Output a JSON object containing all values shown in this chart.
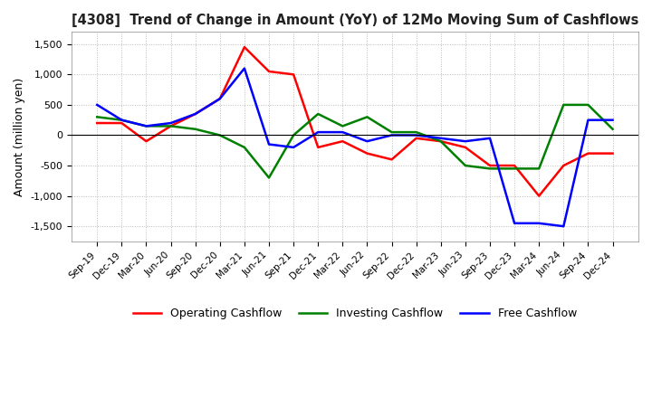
{
  "title": "[4308]  Trend of Change in Amount (YoY) of 12Mo Moving Sum of Cashflows",
  "ylabel": "Amount (million yen)",
  "ylim": [
    -1750,
    1700
  ],
  "yticks": [
    -1500,
    -1000,
    -500,
    0,
    500,
    1000,
    1500
  ],
  "x_labels": [
    "Sep-19",
    "Dec-19",
    "Mar-20",
    "Jun-20",
    "Sep-20",
    "Dec-20",
    "Mar-21",
    "Jun-21",
    "Sep-21",
    "Dec-21",
    "Mar-22",
    "Jun-22",
    "Sep-22",
    "Dec-22",
    "Mar-23",
    "Jun-23",
    "Sep-23",
    "Dec-23",
    "Mar-24",
    "Jun-24",
    "Sep-24",
    "Dec-24"
  ],
  "operating": [
    200,
    200,
    -100,
    150,
    350,
    600,
    1450,
    1050,
    1000,
    -200,
    -100,
    -300,
    -400,
    -50,
    -100,
    -200,
    -500,
    -500,
    -1000,
    -500,
    -300,
    -300
  ],
  "investing": [
    300,
    250,
    150,
    150,
    100,
    0,
    -200,
    -700,
    0,
    350,
    150,
    300,
    50,
    50,
    -100,
    -500,
    -550,
    -550,
    -550,
    500,
    500,
    100
  ],
  "free": [
    500,
    250,
    150,
    200,
    350,
    600,
    1100,
    -150,
    -200,
    50,
    50,
    -100,
    0,
    0,
    -50,
    -100,
    -50,
    -1450,
    -1450,
    -1500,
    250,
    250
  ],
  "colors": {
    "operating": "#ff0000",
    "investing": "#008000",
    "free": "#0000ff"
  },
  "legend_labels": [
    "Operating Cashflow",
    "Investing Cashflow",
    "Free Cashflow"
  ],
  "background_color": "#ffffff",
  "grid_color": "#bbbbbb"
}
